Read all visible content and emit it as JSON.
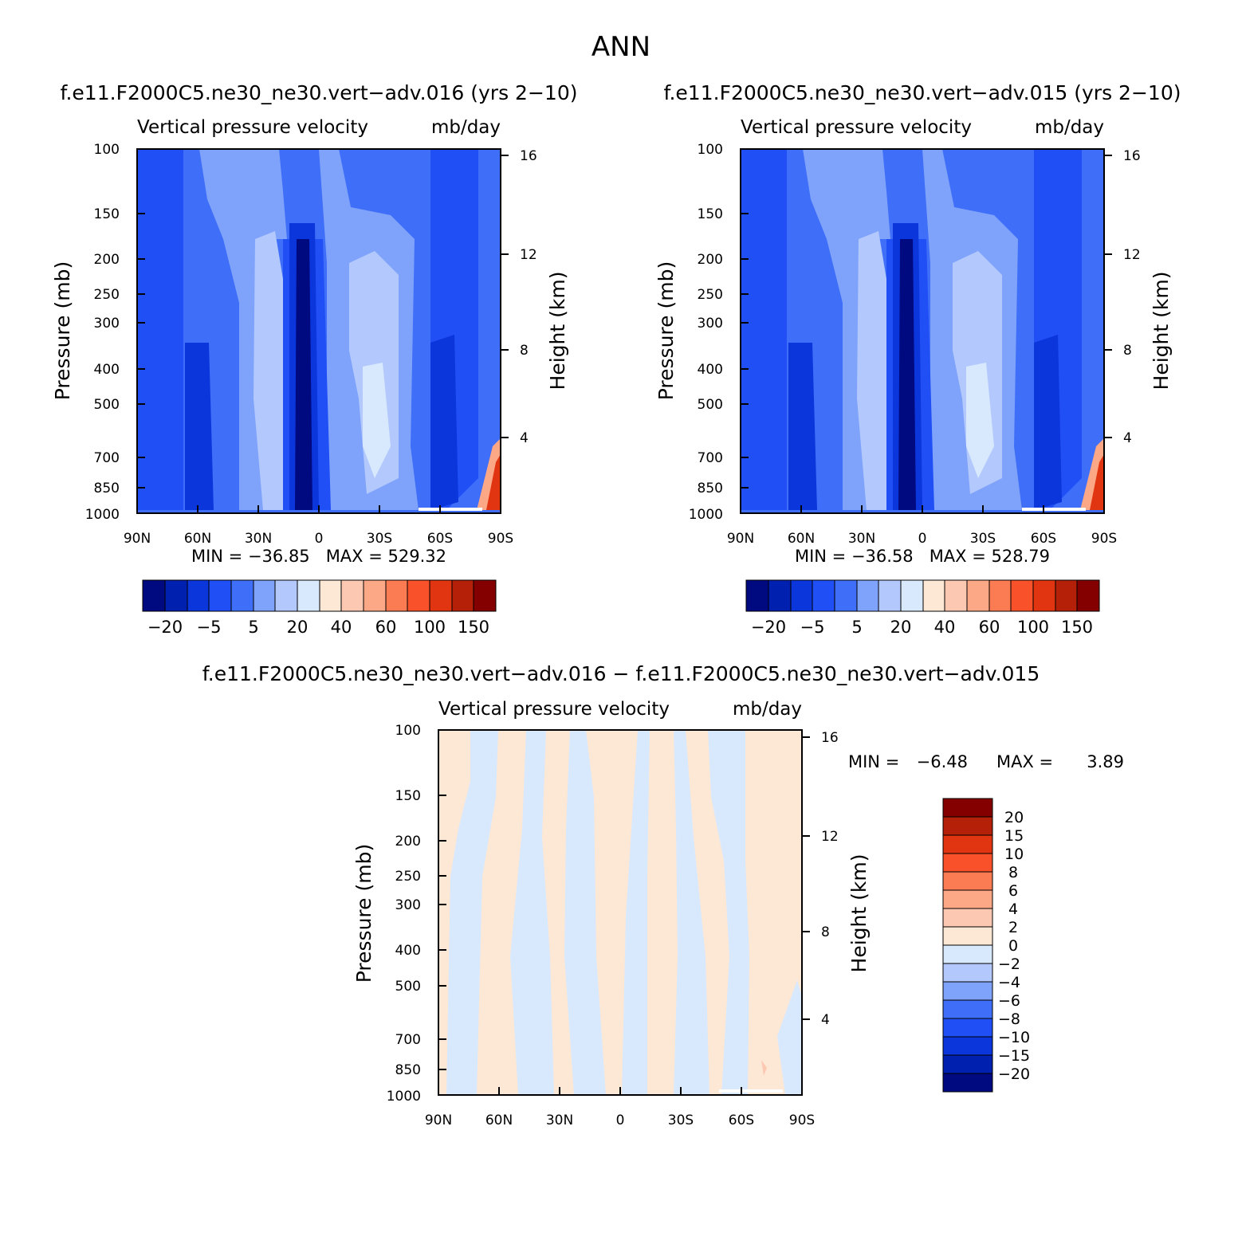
{
  "page_title": "ANN",
  "chart_data": [
    {
      "type": "heatmap",
      "title": "f.e11.F2000C5.ne30_ne30.vert−adv.016 (yrs 2−10)",
      "subtitle_left": "Vertical pressure velocity",
      "subtitle_right": "mb/day",
      "xlabel": "",
      "ylabel": "Pressure (mb)",
      "y2label": "Height (km)",
      "xticks": [
        "90N",
        "60N",
        "30N",
        "0",
        "30S",
        "60S",
        "90S"
      ],
      "yticks": [
        "100",
        "150",
        "200",
        "250",
        "300",
        "400",
        "500",
        "700",
        "850",
        "1000"
      ],
      "y2ticks": [
        "16",
        "12",
        "8",
        "4"
      ],
      "stats": "MIN = −36.85   MAX = 529.32",
      "colorbar": {
        "orientation": "horizontal",
        "colors": [
          "#000a80",
          "#0020b0",
          "#0a36dc",
          "#1f4ff5",
          "#3f6ff8",
          "#7fa3fb",
          "#b3c9fd",
          "#d8e9fd",
          "#fde8d6",
          "#fdc8b2",
          "#fca786",
          "#fb7c52",
          "#f9522a",
          "#e03510",
          "#b52008",
          "#840000"
        ],
        "labels": [
          "−20",
          "−5",
          "5",
          "20",
          "40",
          "60",
          "100",
          "150"
        ]
      }
    },
    {
      "type": "heatmap",
      "title": "f.e11.F2000C5.ne30_ne30.vert−adv.015 (yrs 2−10)",
      "subtitle_left": "Vertical pressure velocity",
      "subtitle_right": "mb/day",
      "xlabel": "",
      "ylabel": "Pressure (mb)",
      "y2label": "Height (km)",
      "xticks": [
        "90N",
        "60N",
        "30N",
        "0",
        "30S",
        "60S",
        "90S"
      ],
      "yticks": [
        "100",
        "150",
        "200",
        "250",
        "300",
        "400",
        "500",
        "700",
        "850",
        "1000"
      ],
      "y2ticks": [
        "16",
        "12",
        "8",
        "4"
      ],
      "stats": "MIN = −36.58   MAX = 528.79",
      "colorbar": {
        "orientation": "horizontal",
        "colors": [
          "#000a80",
          "#0020b0",
          "#0a36dc",
          "#1f4ff5",
          "#3f6ff8",
          "#7fa3fb",
          "#b3c9fd",
          "#d8e9fd",
          "#fde8d6",
          "#fdc8b2",
          "#fca786",
          "#fb7c52",
          "#f9522a",
          "#e03510",
          "#b52008",
          "#840000"
        ],
        "labels": [
          "−20",
          "−5",
          "5",
          "20",
          "40",
          "60",
          "100",
          "150"
        ]
      }
    },
    {
      "type": "heatmap",
      "title": "f.e11.F2000C5.ne30_ne30.vert−adv.016 − f.e11.F2000C5.ne30_ne30.vert−adv.015",
      "subtitle_left": "Vertical pressure velocity",
      "subtitle_right": "mb/day",
      "xlabel": "",
      "ylabel": "Pressure (mb)",
      "y2label": "Height (km)",
      "xticks": [
        "90N",
        "60N",
        "30N",
        "0",
        "30S",
        "60S",
        "90S"
      ],
      "yticks": [
        "100",
        "150",
        "200",
        "250",
        "300",
        "400",
        "500",
        "700",
        "850",
        "1000"
      ],
      "y2ticks": [
        "16",
        "12",
        "8",
        "4"
      ],
      "stats_min_label": "MIN =",
      "stats_min": "−6.48",
      "stats_max_label": "MAX =",
      "stats_max": "3.89",
      "colorbar": {
        "orientation": "vertical",
        "colors": [
          "#000a80",
          "#0020b0",
          "#0a36dc",
          "#1f4ff5",
          "#3f6ff8",
          "#7fa3fb",
          "#b3c9fd",
          "#d8e9fd",
          "#fde8d6",
          "#fdc8b2",
          "#fca786",
          "#fb7c52",
          "#f9522a",
          "#e03510",
          "#b52008",
          "#840000"
        ],
        "labels": [
          "−20",
          "−15",
          "−10",
          "−8",
          "−6",
          "−4",
          "−2",
          "0",
          "2",
          "4",
          "6",
          "8",
          "10",
          "15",
          "20"
        ]
      }
    }
  ]
}
